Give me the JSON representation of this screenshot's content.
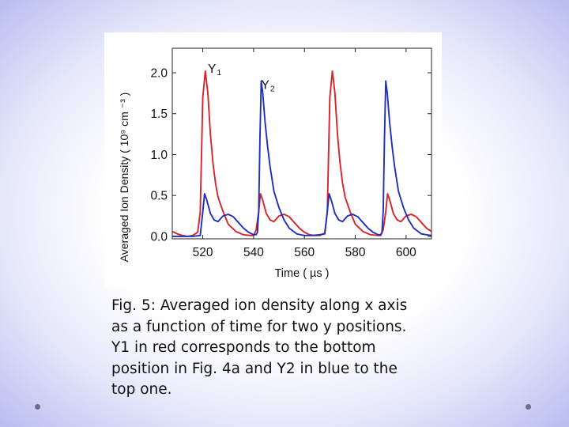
{
  "caption": "Fig. 5: Averaged ion density along  x axis\nas a function of time for two  y positions.\nY1 in red corresponds to the bottom\nposition in Fig. 4a and Y2 in blue to the\ntop one.",
  "colors": {
    "series_red": "#d8232a",
    "series_blue": "#1f2fbf",
    "background_edge": "#b9bdf0"
  },
  "icons": [
    "bullet-dot-icon"
  ],
  "chart_data": {
    "type": "line",
    "xlabel": "Time  ( µs  )",
    "ylabel": "Averaged Ion Density ( 10⁹ cm ⁻³  )",
    "xlim": [
      508,
      610
    ],
    "ylim": [
      -0.03,
      2.3
    ],
    "x_ticks": [
      520,
      540,
      560,
      580,
      600
    ],
    "y_ticks": [
      0.0,
      0.5,
      1.0,
      1.5,
      2.0
    ],
    "x_tick_labels": [
      "520",
      "540",
      "560",
      "580",
      "600"
    ],
    "y_tick_labels": [
      "0.0",
      "0.5",
      "1.0",
      "1.5",
      "2.0"
    ],
    "grid": false,
    "series": [
      {
        "name": "Y1",
        "label_main": "Y",
        "label_sub": "1",
        "label_at": [
          522,
          2.0
        ],
        "color": "#d8232a",
        "points": [
          [
            508,
            0.06
          ],
          [
            510,
            0.03
          ],
          [
            512,
            0.01
          ],
          [
            514,
            0.0
          ],
          [
            516,
            0.01
          ],
          [
            518,
            0.05
          ],
          [
            519,
            0.3
          ],
          [
            520,
            1.7
          ],
          [
            521,
            2.02
          ],
          [
            522,
            1.75
          ],
          [
            523,
            1.25
          ],
          [
            524,
            0.9
          ],
          [
            525,
            0.65
          ],
          [
            526,
            0.48
          ],
          [
            528,
            0.3
          ],
          [
            530,
            0.15
          ],
          [
            533,
            0.06
          ],
          [
            536,
            0.02
          ],
          [
            539,
            0.01
          ],
          [
            540,
            0.01
          ],
          [
            541,
            0.08
          ],
          [
            542,
            0.3
          ],
          [
            542.7,
            0.52
          ],
          [
            543.5,
            0.45
          ],
          [
            545,
            0.28
          ],
          [
            546.5,
            0.2
          ],
          [
            548,
            0.18
          ],
          [
            550,
            0.25
          ],
          [
            552,
            0.27
          ],
          [
            554,
            0.24
          ],
          [
            556,
            0.17
          ],
          [
            558,
            0.1
          ],
          [
            560,
            0.05
          ],
          [
            562,
            0.02
          ],
          [
            564,
            0.01
          ],
          [
            566,
            0.01
          ],
          [
            568,
            0.04
          ],
          [
            569,
            0.3
          ],
          [
            570,
            1.7
          ],
          [
            571,
            2.02
          ],
          [
            572,
            1.75
          ],
          [
            573,
            1.25
          ],
          [
            574,
            0.9
          ],
          [
            575,
            0.65
          ],
          [
            576,
            0.48
          ],
          [
            578,
            0.3
          ],
          [
            580,
            0.15
          ],
          [
            583,
            0.06
          ],
          [
            586,
            0.02
          ],
          [
            589,
            0.01
          ],
          [
            590,
            0.01
          ],
          [
            591,
            0.08
          ],
          [
            592,
            0.3
          ],
          [
            592.7,
            0.52
          ],
          [
            593.5,
            0.45
          ],
          [
            595,
            0.28
          ],
          [
            596.5,
            0.2
          ],
          [
            598,
            0.18
          ],
          [
            600,
            0.25
          ],
          [
            602,
            0.27
          ],
          [
            604,
            0.24
          ],
          [
            606,
            0.17
          ],
          [
            608,
            0.1
          ],
          [
            610,
            0.06
          ]
        ]
      },
      {
        "name": "Y2",
        "label_main": "Y",
        "label_sub": "2",
        "label_at": [
          543,
          1.8
        ],
        "color": "#1f2fbf",
        "points": [
          [
            508,
            0.0
          ],
          [
            512,
            0.0
          ],
          [
            516,
            0.0
          ],
          [
            519,
            0.01
          ],
          [
            520,
            0.3
          ],
          [
            520.7,
            0.52
          ],
          [
            521.5,
            0.45
          ],
          [
            523,
            0.28
          ],
          [
            524.5,
            0.2
          ],
          [
            526,
            0.18
          ],
          [
            528,
            0.25
          ],
          [
            530,
            0.27
          ],
          [
            532,
            0.24
          ],
          [
            534,
            0.17
          ],
          [
            536,
            0.1
          ],
          [
            538,
            0.05
          ],
          [
            540,
            0.02
          ],
          [
            541,
            0.02
          ],
          [
            541.5,
            0.05
          ],
          [
            542,
            0.3
          ],
          [
            542.5,
            1.2
          ],
          [
            543,
            1.9
          ],
          [
            543.6,
            1.75
          ],
          [
            544.5,
            1.4
          ],
          [
            545.5,
            1.1
          ],
          [
            546.5,
            0.85
          ],
          [
            548,
            0.55
          ],
          [
            550,
            0.35
          ],
          [
            552,
            0.2
          ],
          [
            554,
            0.1
          ],
          [
            557,
            0.03
          ],
          [
            560,
            0.01
          ],
          [
            563,
            0.01
          ],
          [
            566,
            0.02
          ],
          [
            568,
            0.03
          ],
          [
            569,
            0.3
          ],
          [
            569.7,
            0.52
          ],
          [
            570.5,
            0.45
          ],
          [
            572,
            0.28
          ],
          [
            573.5,
            0.2
          ],
          [
            575,
            0.18
          ],
          [
            577,
            0.25
          ],
          [
            579,
            0.27
          ],
          [
            581,
            0.24
          ],
          [
            583,
            0.17
          ],
          [
            585,
            0.1
          ],
          [
            587,
            0.05
          ],
          [
            589,
            0.02
          ],
          [
            590,
            0.02
          ],
          [
            590.5,
            0.05
          ],
          [
            591,
            0.3
          ],
          [
            591.5,
            1.2
          ],
          [
            592,
            1.9
          ],
          [
            592.6,
            1.75
          ],
          [
            593.5,
            1.4
          ],
          [
            594.5,
            1.1
          ],
          [
            595.5,
            0.85
          ],
          [
            597,
            0.55
          ],
          [
            599,
            0.35
          ],
          [
            601,
            0.2
          ],
          [
            603,
            0.1
          ],
          [
            606,
            0.03
          ],
          [
            610,
            0.01
          ]
        ]
      }
    ]
  }
}
